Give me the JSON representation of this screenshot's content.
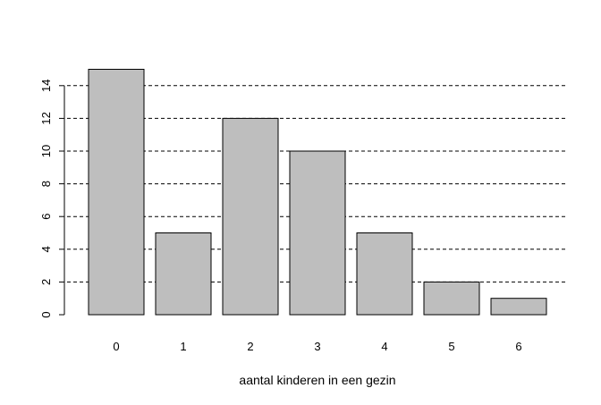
{
  "chart_data": {
    "type": "bar",
    "categories": [
      "0",
      "1",
      "2",
      "3",
      "4",
      "5",
      "6"
    ],
    "values": [
      15,
      5,
      12,
      10,
      5,
      2,
      1
    ],
    "title": "",
    "xlabel": "aantal kinderen in een gezin",
    "ylabel": "",
    "ylim": [
      0,
      15
    ],
    "yticks": [
      0,
      2,
      4,
      6,
      8,
      10,
      12,
      14
    ],
    "grid": "horizontal dashed",
    "legend": "none",
    "colors": {
      "bar_fill": "#bebebe",
      "bar_stroke": "#000000",
      "grid": "#000000"
    }
  }
}
